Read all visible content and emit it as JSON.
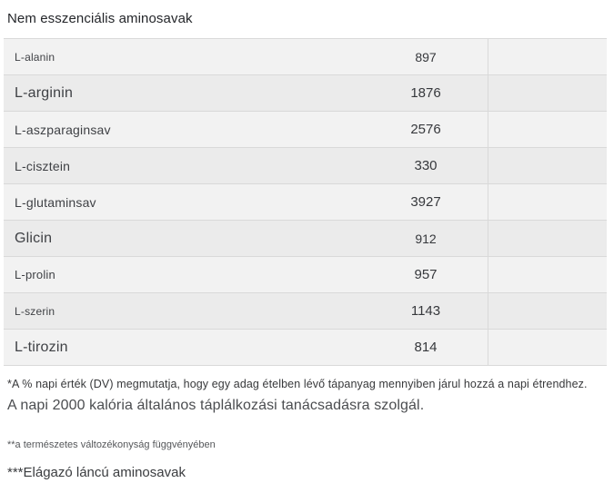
{
  "page": {
    "title": "Nem esszenciális aminosavak"
  },
  "table": {
    "rows": [
      {
        "name": "L-alanin",
        "value": "897"
      },
      {
        "name": "L-arginin",
        "value": "1876"
      },
      {
        "name": "L-aszparaginsav",
        "value": "2576"
      },
      {
        "name": "L-cisztein",
        "value": "330"
      },
      {
        "name": "L-glutaminsav",
        "value": "3927"
      },
      {
        "name": "Glicin",
        "value": "912"
      },
      {
        "name": "L-prolin",
        "value": "957"
      },
      {
        "name": "L-szerin",
        "value": "1143"
      },
      {
        "name": "L-tirozin",
        "value": "814"
      }
    ]
  },
  "footnotes": {
    "daily_value_note": "*A % napi érték (DV) megmutatja, hogy egy adag ételben lévő tápanyag mennyiben járul hozzá a napi étrendhez.",
    "calories_note": "A napi 2000 kalória általános táplálkozási tanácsadásra szolgál.",
    "variability_note": "**a természetes változékonyság függvényében",
    "bcaa_note": "***Elágazó láncú aminosavak"
  },
  "colors": {
    "row_light": "#f2f2f2",
    "row_dark": "#ebebeb",
    "border": "#d9d9d9"
  }
}
